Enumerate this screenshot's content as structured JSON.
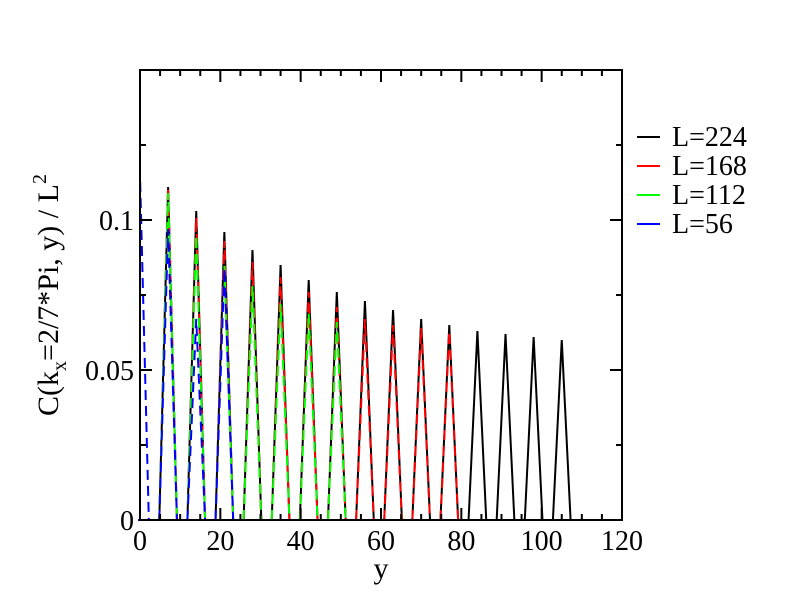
{
  "chart_data": {
    "type": "line",
    "xlabel": "y",
    "ylabel": "C(k_x=2/7*Pi, y) / L^2",
    "ylabel_parts": {
      "pre": "C(k",
      "sub": "x",
      "mid": "=2/7*Pi, y) / L",
      "sup": "2"
    },
    "xlim": [
      0,
      120
    ],
    "ylim": [
      0,
      0.15
    ],
    "xticks": [
      0,
      20,
      40,
      60,
      80,
      100,
      120
    ],
    "xtick_labels": [
      "0",
      "20",
      "40",
      "60",
      "80",
      "100",
      "120"
    ],
    "yticks": [
      0,
      0.05,
      0.1
    ],
    "ytick_labels": [
      "0",
      "0.05",
      "0.1"
    ],
    "legend_position": "right",
    "series": [
      {
        "name": "L=224",
        "color": "#000000",
        "peaks": [
          {
            "x": 7,
            "y": 0.111
          },
          {
            "x": 14,
            "y": 0.103
          },
          {
            "x": 21,
            "y": 0.096
          },
          {
            "x": 28,
            "y": 0.09
          },
          {
            "x": 35,
            "y": 0.085
          },
          {
            "x": 42,
            "y": 0.08
          },
          {
            "x": 49,
            "y": 0.076
          },
          {
            "x": 56,
            "y": 0.073
          },
          {
            "x": 63,
            "y": 0.07
          },
          {
            "x": 70,
            "y": 0.067
          },
          {
            "x": 77,
            "y": 0.065
          },
          {
            "x": 84,
            "y": 0.063
          },
          {
            "x": 91,
            "y": 0.062
          },
          {
            "x": 98,
            "y": 0.061
          },
          {
            "x": 105,
            "y": 0.06
          }
        ]
      },
      {
        "name": "L=168",
        "color": "#ff0000",
        "peaks": [
          {
            "x": 7,
            "y": 0.111
          },
          {
            "x": 14,
            "y": 0.101
          },
          {
            "x": 21,
            "y": 0.093
          },
          {
            "x": 28,
            "y": 0.086
          },
          {
            "x": 35,
            "y": 0.081
          },
          {
            "x": 42,
            "y": 0.076
          },
          {
            "x": 49,
            "y": 0.071
          },
          {
            "x": 56,
            "y": 0.067
          },
          {
            "x": 63,
            "y": 0.065
          },
          {
            "x": 70,
            "y": 0.064
          },
          {
            "x": 77,
            "y": 0.063
          }
        ]
      },
      {
        "name": "L=112",
        "color": "#00ff00",
        "peaks": [
          {
            "x": 7,
            "y": 0.109
          },
          {
            "x": 14,
            "y": 0.095
          },
          {
            "x": 21,
            "y": 0.085
          },
          {
            "x": 28,
            "y": 0.078
          },
          {
            "x": 35,
            "y": 0.072
          },
          {
            "x": 42,
            "y": 0.069
          },
          {
            "x": 49,
            "y": 0.066
          }
        ]
      },
      {
        "name": "L=56",
        "color": "#0000ff",
        "peaks": [
          {
            "x": 0,
            "y": 0.115
          },
          {
            "x": 7,
            "y": 0.097
          },
          {
            "x": 14,
            "y": 0.067
          },
          {
            "x": 21,
            "y": 0.084
          }
        ]
      }
    ]
  }
}
